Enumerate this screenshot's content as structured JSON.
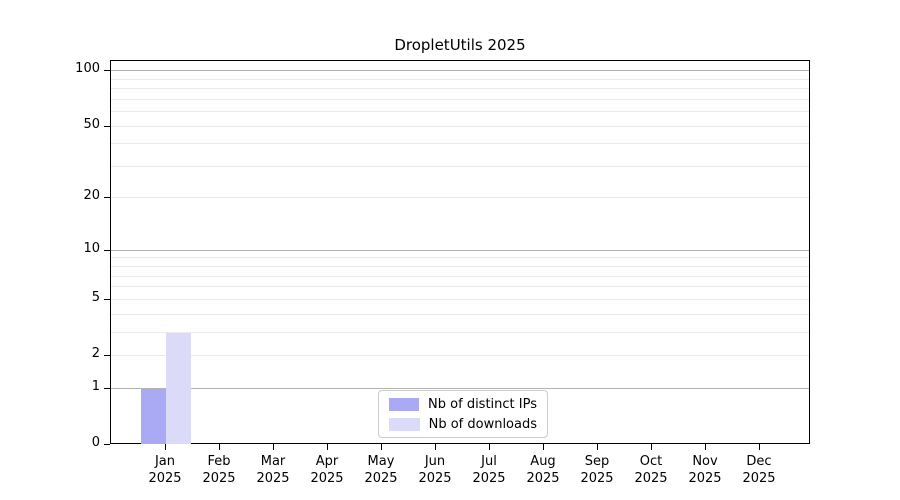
{
  "title": "DropletUtils 2025",
  "chart_data": {
    "type": "bar",
    "title": "DropletUtils 2025",
    "categories": [
      "Jan",
      "Feb",
      "Mar",
      "Apr",
      "May",
      "Jun",
      "Jul",
      "Aug",
      "Sep",
      "Oct",
      "Nov",
      "Dec"
    ],
    "category_year": "2025",
    "series": [
      {
        "name": "Nb of distinct IPs",
        "color": "#a9a9f4",
        "values": [
          1,
          0,
          0,
          0,
          0,
          0,
          0,
          0,
          0,
          0,
          0,
          0
        ]
      },
      {
        "name": "Nb of downloads",
        "color": "#dbdbf9",
        "values": [
          3,
          0,
          0,
          0,
          0,
          0,
          0,
          0,
          0,
          0,
          0,
          0
        ]
      }
    ],
    "xlabel": "",
    "ylabel": "",
    "y_scale": "log1p",
    "ylim": [
      0,
      113.5
    ],
    "y_ticks": [
      0,
      1,
      2,
      5,
      10,
      20,
      50,
      100
    ],
    "gridlines_major": [
      1,
      10,
      100
    ],
    "gridlines_minor": [
      2,
      3,
      4,
      5,
      6,
      7,
      8,
      9,
      20,
      30,
      40,
      50,
      60,
      70,
      80,
      90
    ],
    "grid": true,
    "legend_position": "bottom-center",
    "colors": {
      "axis": "#000000",
      "major_grid": "#b3b3b3",
      "minor_grid": "#ebebeb",
      "background": "#ffffff"
    }
  },
  "legend": {
    "items": [
      {
        "label": "Nb of distinct IPs",
        "color": "#a9a9f4"
      },
      {
        "label": "Nb of downloads",
        "color": "#dbdbf9"
      }
    ]
  }
}
